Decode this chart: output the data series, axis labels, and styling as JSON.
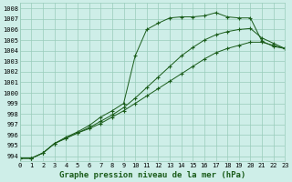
{
  "title": "Graphe pression niveau de la mer (hPa)",
  "bg_color": "#ceeee8",
  "grid_color": "#99ccbb",
  "line_color": "#1a5c1a",
  "xmin": 0,
  "xmax": 23,
  "ymin": 993.5,
  "ymax": 1008.5,
  "yticks": [
    994,
    995,
    996,
    997,
    998,
    999,
    1000,
    1001,
    1002,
    1003,
    1004,
    1005,
    1006,
    1007,
    1008
  ],
  "xticks": [
    0,
    1,
    2,
    3,
    4,
    5,
    6,
    7,
    8,
    9,
    10,
    11,
    12,
    13,
    14,
    15,
    16,
    17,
    18,
    19,
    20,
    21,
    22,
    23
  ],
  "series": [
    [
      993.8,
      993.8,
      994.3,
      995.2,
      995.8,
      996.3,
      996.9,
      997.7,
      998.3,
      999.0,
      1003.5,
      1006.0,
      1006.6,
      1007.1,
      1007.2,
      1007.2,
      1007.3,
      1007.6,
      1007.2,
      1007.1,
      1007.1,
      1004.9,
      1004.4,
      1004.2
    ],
    [
      993.8,
      993.8,
      994.3,
      995.2,
      995.7,
      996.2,
      996.7,
      997.3,
      997.9,
      998.6,
      999.5,
      1000.5,
      1001.5,
      1002.5,
      1003.5,
      1004.3,
      1005.0,
      1005.5,
      1005.8,
      1006.0,
      1006.1,
      1005.2,
      1004.7,
      1004.2
    ],
    [
      993.8,
      993.8,
      994.3,
      995.2,
      995.7,
      996.2,
      996.6,
      997.1,
      997.7,
      998.3,
      999.0,
      999.7,
      1000.4,
      1001.1,
      1001.8,
      1002.5,
      1003.2,
      1003.8,
      1004.2,
      1004.5,
      1004.8,
      1004.8,
      1004.5,
      1004.2
    ]
  ]
}
